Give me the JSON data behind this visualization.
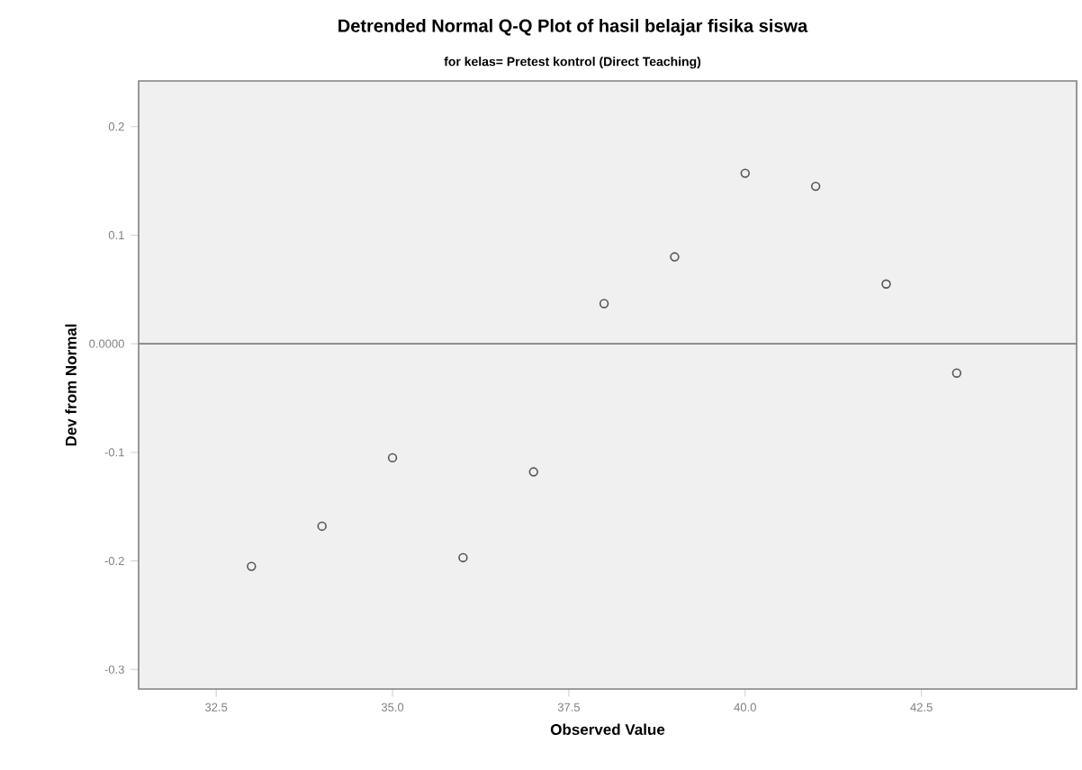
{
  "chart_data": {
    "type": "scatter",
    "title": "Detrended Normal Q-Q Plot of hasil belajar fisika siswa",
    "subtitle": "for kelas= Pretest kontrol (Direct Teaching)",
    "xlabel": "Observed Value",
    "ylabel": "Dev from Normal",
    "x": [
      33,
      34,
      35,
      36,
      37,
      38,
      39,
      40,
      41,
      42,
      43
    ],
    "series": [
      {
        "color": "#555555",
        "values": [
          -0.205,
          -0.168,
          -0.105,
          -0.197,
          -0.118,
          0.037,
          0.08,
          0.157,
          0.145,
          0.055,
          -0.027
        ]
      }
    ],
    "marker": "circle",
    "grid": false,
    "xlim": [
      31.4,
      44.7
    ],
    "ylim": [
      -0.318,
      0.242
    ],
    "xticks": [
      {
        "value": 32.5,
        "label": "32.5"
      },
      {
        "value": 35,
        "label": "35.0"
      },
      {
        "value": 37.5,
        "label": "37.5"
      },
      {
        "value": 40,
        "label": "40.0"
      },
      {
        "value": 42.5,
        "label": "42.5"
      }
    ],
    "yticks": [
      {
        "value": -0.3,
        "label": "-0.3"
      },
      {
        "value": -0.2,
        "label": "-0.2"
      },
      {
        "value": -0.1,
        "label": "-0.1"
      },
      {
        "value": 0,
        "label": "0.0000"
      },
      {
        "value": 0.1,
        "label": "0.1"
      },
      {
        "value": 0.2,
        "label": "0.2"
      }
    ],
    "ref_lines": [
      {
        "axis": "y",
        "value": 0,
        "color": "#808080"
      }
    ]
  }
}
